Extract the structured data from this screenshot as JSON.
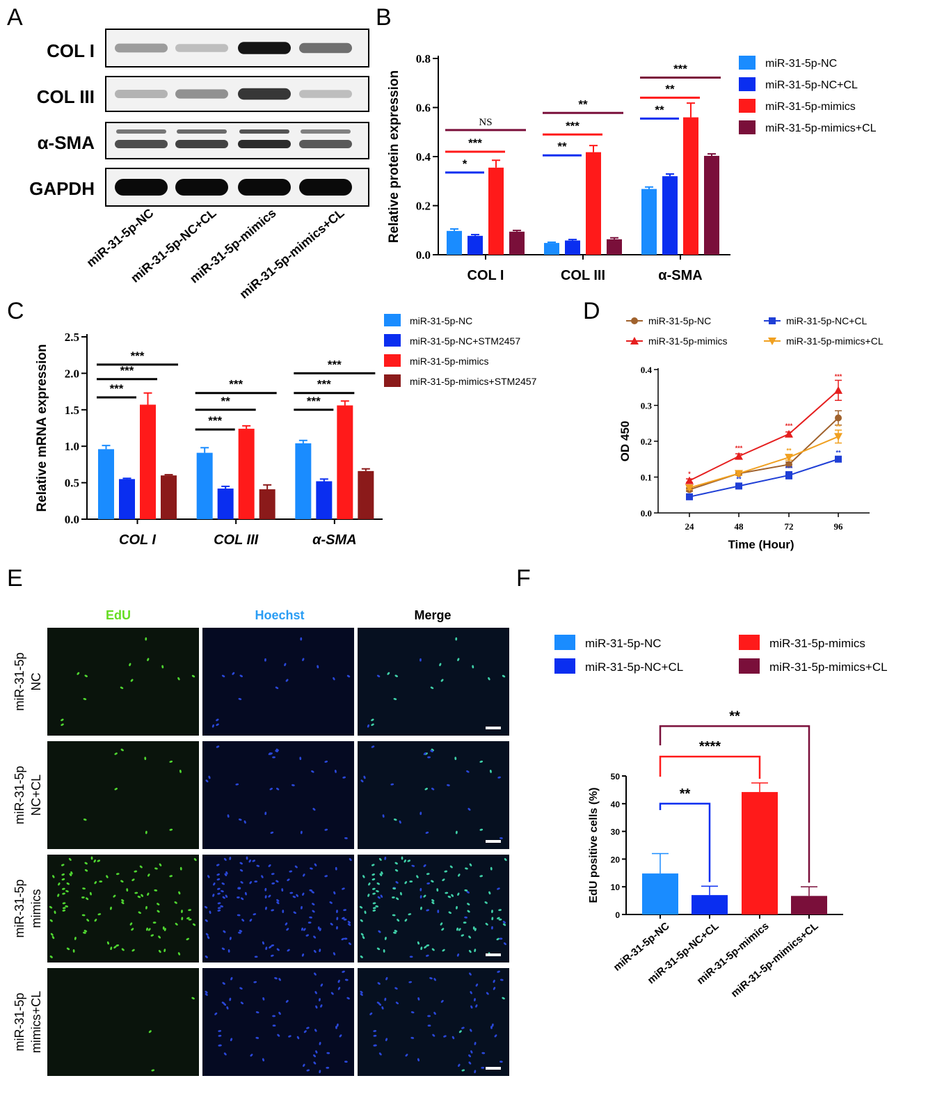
{
  "panel_labels": {
    "a": "A",
    "b": "B",
    "c": "C",
    "d": "D",
    "e": "E",
    "f": "F"
  },
  "colors": {
    "nc": "#1a8cff",
    "nc_cl": "#0a2ef0",
    "mimics": "#ff1a1a",
    "mimics_cl": "#7a0f3a",
    "stm": "#8b1a1a",
    "d_nc": "#a0622d",
    "d_nc_cl": "#1f3fd6",
    "d_mimics": "#e51f1f",
    "d_mimics_cl": "#f0a020"
  },
  "blot": {
    "proteins": [
      "COL I",
      "COL III",
      "α-SMA",
      "GAPDH"
    ],
    "lanes": [
      "miR-31-5p-NC",
      "miR-31-5p-NC+CL",
      "miR-31-5p-mimics",
      "miR-31-5p-mimics+CL"
    ],
    "band_intensity": [
      [
        0.35,
        0.2,
        0.95,
        0.55
      ],
      [
        0.25,
        0.4,
        0.8,
        0.2
      ],
      [
        0.7,
        0.75,
        0.85,
        0.65
      ],
      [
        1,
        1,
        1,
        1
      ]
    ]
  },
  "chart_data": [
    {
      "panel": "B",
      "type": "bar",
      "ylabel": "Relative protein expression",
      "ylim": [
        0,
        0.8
      ],
      "yticks": [
        "0.0",
        "0.2",
        "0.4",
        "0.6",
        "0.8"
      ],
      "categories": [
        "COL I",
        "COL III",
        "α-SMA"
      ],
      "series": [
        {
          "name": "miR-31-5p-NC",
          "values": [
            0.097,
            0.048,
            0.268
          ],
          "errors": [
            0.008,
            0.003,
            0.008
          ]
        },
        {
          "name": "miR-31-5p-NC+CL",
          "values": [
            0.077,
            0.058,
            0.32
          ],
          "errors": [
            0.005,
            0.004,
            0.009
          ]
        },
        {
          "name": "miR-31-5p-mimics",
          "values": [
            0.355,
            0.418,
            0.56
          ],
          "errors": [
            0.03,
            0.027,
            0.058
          ]
        },
        {
          "name": "miR-31-5p-mimics+CL",
          "values": [
            0.094,
            0.063,
            0.403
          ],
          "errors": [
            0.005,
            0.006,
            0.008
          ]
        }
      ],
      "significance": [
        {
          "cat": 0,
          "to": 1,
          "label": "*",
          "y": 0.335,
          "color": "nc_cl"
        },
        {
          "cat": 0,
          "to": 2,
          "label": "***",
          "y": 0.42,
          "color": "mimics"
        },
        {
          "cat": 0,
          "to": 3,
          "label": "NS",
          "y": 0.508,
          "color": "mimics_cl"
        },
        {
          "cat": 1,
          "to": 1,
          "label": "**",
          "y": 0.405,
          "color": "nc_cl"
        },
        {
          "cat": 1,
          "to": 2,
          "label": "***",
          "y": 0.49,
          "color": "mimics"
        },
        {
          "cat": 1,
          "to": 3,
          "label": "**",
          "y": 0.578,
          "color": "mimics_cl"
        },
        {
          "cat": 2,
          "to": 1,
          "label": "**",
          "y": 0.555,
          "color": "nc_cl"
        },
        {
          "cat": 2,
          "to": 2,
          "label": "**",
          "y": 0.64,
          "color": "mimics"
        },
        {
          "cat": 2,
          "to": 3,
          "label": "***",
          "y": 0.722,
          "color": "mimics_cl"
        }
      ]
    },
    {
      "panel": "C",
      "type": "bar",
      "ylabel": "Relative mRNA expression",
      "ylim": [
        0,
        2.5
      ],
      "yticks": [
        "0.0",
        "0.5",
        "1.0",
        "1.5",
        "2.0",
        "2.5"
      ],
      "categories": [
        "COL I",
        "COL III",
        "α-SMA"
      ],
      "series": [
        {
          "name": "miR-31-5p-NC",
          "values": [
            0.96,
            0.91,
            1.04
          ],
          "errors": [
            0.05,
            0.07,
            0.04
          ]
        },
        {
          "name": "miR-31-5p-NC+STM2457",
          "values": [
            0.55,
            0.42,
            0.52
          ],
          "errors": [
            0.01,
            0.03,
            0.03
          ]
        },
        {
          "name": "miR-31-5p-mimics",
          "values": [
            1.57,
            1.24,
            1.56
          ],
          "errors": [
            0.16,
            0.04,
            0.06
          ]
        },
        {
          "name": "miR-31-5p-mimics+STM2457",
          "values": [
            0.6,
            0.41,
            0.66
          ],
          "errors": [
            0.01,
            0.06,
            0.03
          ]
        }
      ],
      "significance": [
        {
          "cat": 0,
          "to": 1,
          "label": "***",
          "y": 1.67
        },
        {
          "cat": 0,
          "to": 2,
          "label": "***",
          "y": 1.92
        },
        {
          "cat": 0,
          "to": 3,
          "label": "***",
          "y": 2.12
        },
        {
          "cat": 1,
          "to": 1,
          "label": "***",
          "y": 1.23
        },
        {
          "cat": 1,
          "to": 2,
          "label": "**",
          "y": 1.5
        },
        {
          "cat": 1,
          "to": 3,
          "label": "***",
          "y": 1.73
        },
        {
          "cat": 2,
          "to": 1,
          "label": "***",
          "y": 1.5
        },
        {
          "cat": 2,
          "to": 2,
          "label": "***",
          "y": 1.73
        },
        {
          "cat": 2,
          "to": 3,
          "label": "***",
          "y": 2.0
        }
      ]
    },
    {
      "panel": "D",
      "type": "line",
      "xlabel": "Time (Hour)",
      "ylabel": "OD 450",
      "x": [
        24,
        48,
        72,
        96
      ],
      "xticks": [
        "24",
        "48",
        "72",
        "96"
      ],
      "ylim": [
        0,
        0.4
      ],
      "yticks": [
        "0.0",
        "0.1",
        "0.2",
        "0.3",
        "0.4"
      ],
      "series": [
        {
          "name": "miR-31-5p-NC",
          "values": [
            0.065,
            0.11,
            0.135,
            0.265
          ],
          "errors": [
            0.005,
            0.005,
            0.007,
            0.02
          ],
          "marker": "circle",
          "color": "d_nc"
        },
        {
          "name": "miR-31-5p-NC+CL",
          "values": [
            0.045,
            0.075,
            0.105,
            0.15
          ],
          "errors": [
            0.004,
            0.006,
            0.01,
            0.006
          ],
          "marker": "square",
          "color": "d_nc_cl"
        },
        {
          "name": "miR-31-5p-mimics",
          "values": [
            0.09,
            0.158,
            0.22,
            0.342
          ],
          "errors": [
            0.005,
            0.007,
            0.006,
            0.028
          ],
          "marker": "triangle",
          "color": "d_mimics"
        },
        {
          "name": "miR-31-5p-mimics+CL",
          "values": [
            0.07,
            0.11,
            0.155,
            0.213
          ],
          "errors": [
            0.005,
            0.005,
            0.008,
            0.018
          ],
          "marker": "triangle-down",
          "color": "d_mimics_cl"
        }
      ],
      "point_sig": [
        {
          "x": 24,
          "y": 0.103,
          "label": "*",
          "color": "d_mimics"
        },
        {
          "x": 48,
          "y": 0.175,
          "label": "***",
          "color": "d_mimics"
        },
        {
          "x": 72,
          "y": 0.237,
          "label": "***",
          "color": "d_mimics"
        },
        {
          "x": 96,
          "y": 0.375,
          "label": "***",
          "color": "d_mimics"
        },
        {
          "x": 48,
          "y": 0.088,
          "label": "**",
          "color": "d_nc_cl"
        },
        {
          "x": 72,
          "y": 0.118,
          "label": "***",
          "color": "d_nc_cl"
        },
        {
          "x": 96,
          "y": 0.162,
          "label": "**",
          "color": "d_nc_cl"
        },
        {
          "x": 72,
          "y": 0.168,
          "label": "**",
          "color": "d_mimics_cl"
        },
        {
          "x": 96,
          "y": 0.235,
          "label": "**",
          "color": "d_mimics_cl"
        }
      ]
    },
    {
      "panel": "F",
      "type": "bar",
      "ylabel": "EdU positive cells (%)",
      "ylim": [
        0,
        50
      ],
      "yticks": [
        "0",
        "10",
        "20",
        "30",
        "40",
        "50"
      ],
      "categories": [
        "miR-31-5p-NC",
        "miR-31-5p-NC+CL",
        "miR-31-5p-mimics",
        "miR-31-5p-mimics+CL"
      ],
      "values": [
        14.8,
        7.0,
        44.2,
        6.7
      ],
      "errors": [
        7.2,
        3.2,
        3.3,
        3.3
      ],
      "bar_colors": [
        "nc",
        "nc_cl",
        "mimics",
        "mimics_cl"
      ],
      "series_names": [
        "miR-31-5p-NC",
        "miR-31-5p-NC+CL",
        "miR-31-5p-mimics",
        "miR-31-5p-mimics+CL"
      ],
      "significance": [
        {
          "to": 1,
          "label": "**",
          "y": 40,
          "color": "nc_cl"
        },
        {
          "to": 2,
          "label": "****",
          "y": 57,
          "color": "mimics"
        },
        {
          "to": 3,
          "label": "**",
          "y": 68,
          "color": "mimics_cl"
        }
      ]
    }
  ],
  "micro": {
    "columns": [
      "EdU",
      "Hoechst",
      "Merge"
    ],
    "column_colors": [
      "#66dd22",
      "#2a9df4",
      "#000000"
    ],
    "rows": [
      {
        "label_lines": [
          "miR-31-5p",
          "NC"
        ],
        "edu": 10,
        "nuclei": 16
      },
      {
        "label_lines": [
          "miR-31-5p",
          "NC+CL"
        ],
        "edu": 8,
        "nuclei": 26
      },
      {
        "label_lines": [
          "miR-31-5p",
          "mimics"
        ],
        "edu": 90,
        "nuclei": 120
      },
      {
        "label_lines": [
          "miR-31-5p",
          "mimics+CL"
        ],
        "edu": 6,
        "nuclei": 60
      }
    ]
  }
}
